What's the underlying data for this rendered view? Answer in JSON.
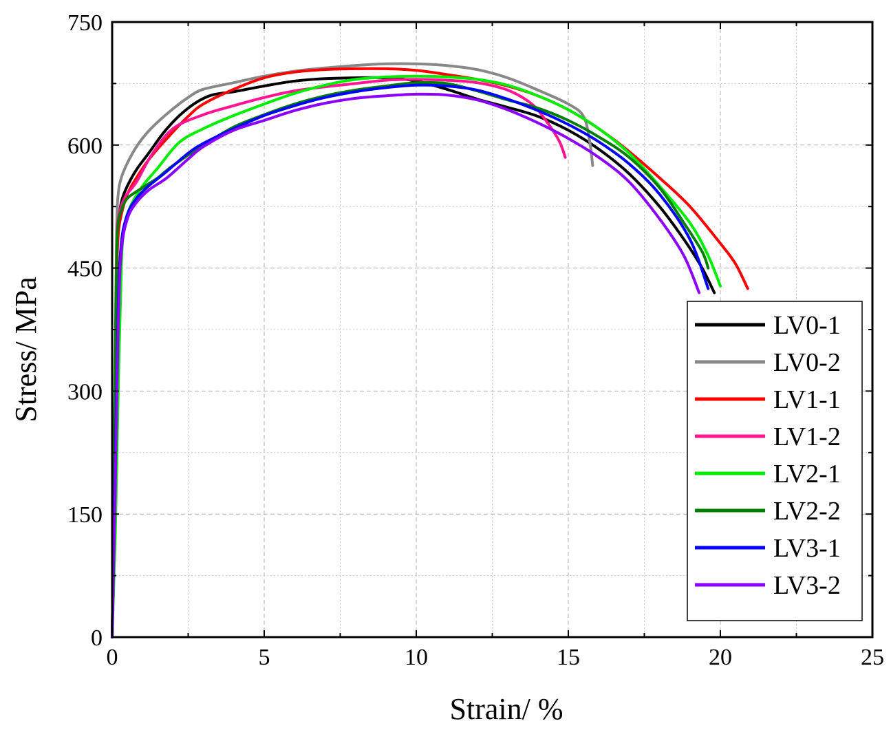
{
  "chart_data": {
    "type": "line",
    "title": "",
    "xlabel": "Strain/ %",
    "ylabel": "Stress/ MPa",
    "xlim": [
      0,
      25
    ],
    "ylim": [
      0,
      750
    ],
    "xticks": [
      0,
      5,
      10,
      15,
      20,
      25
    ],
    "yticks": [
      0,
      150,
      300,
      450,
      600,
      750
    ],
    "grid": true,
    "legend_position": "bottom-right",
    "series": [
      {
        "name": "LV0-1",
        "color": "#000000",
        "x": [
          0,
          0.05,
          0.1,
          0.15,
          0.2,
          0.3,
          0.5,
          0.8,
          1.2,
          1.8,
          2.5,
          3.2,
          4,
          5,
          6,
          7,
          8,
          9,
          10,
          11,
          12,
          13,
          14,
          15,
          16,
          17,
          18,
          18.8,
          19.4,
          19.8
        ],
        "y": [
          0,
          120,
          300,
          450,
          500,
          530,
          550,
          570,
          590,
          620,
          645,
          660,
          665,
          672,
          678,
          681,
          682,
          682,
          678,
          668,
          656,
          646,
          635,
          618,
          595,
          565,
          525,
          485,
          450,
          420
        ]
      },
      {
        "name": "LV0-2",
        "color": "#888888",
        "x": [
          0,
          0.05,
          0.1,
          0.15,
          0.2,
          0.3,
          0.5,
          0.8,
          1.2,
          1.8,
          2.5,
          3,
          4,
          5,
          6,
          7,
          8,
          9,
          10,
          11,
          12,
          13,
          14,
          15,
          15.5,
          15.7,
          15.8
        ],
        "y": [
          0,
          150,
          350,
          500,
          540,
          560,
          578,
          598,
          617,
          638,
          658,
          668,
          676,
          684,
          690,
          694,
          697,
          699,
          699,
          697,
          692,
          682,
          667,
          650,
          635,
          605,
          575
        ]
      },
      {
        "name": "LV1-1",
        "color": "#ff0000",
        "x": [
          0,
          0.05,
          0.1,
          0.15,
          0.2,
          0.3,
          0.5,
          0.8,
          1.2,
          1.8,
          2.5,
          3,
          4,
          5,
          6,
          7,
          8,
          9,
          10,
          11,
          12,
          13,
          14,
          15,
          16,
          17,
          18,
          19,
          20,
          20.5,
          20.9
        ],
        "y": [
          0,
          120,
          300,
          440,
          490,
          515,
          540,
          560,
          582,
          608,
          635,
          650,
          668,
          682,
          689,
          692,
          693,
          693,
          691,
          686,
          680,
          672,
          660,
          643,
          620,
          592,
          560,
          525,
          480,
          455,
          425
        ]
      },
      {
        "name": "LV1-2",
        "color": "#ff1493",
        "x": [
          0,
          0.05,
          0.1,
          0.15,
          0.2,
          0.4,
          0.8,
          1.3,
          2,
          3,
          4,
          5,
          6,
          7,
          8,
          9,
          10,
          11,
          12,
          13,
          13.8,
          14.3,
          14.7,
          14.9
        ],
        "y": [
          0,
          130,
          320,
          470,
          510,
          535,
          555,
          588,
          620,
          637,
          648,
          658,
          666,
          671,
          675,
          679,
          680,
          679,
          676,
          667,
          650,
          628,
          605,
          585
        ]
      },
      {
        "name": "LV2-1",
        "color": "#00ee00",
        "x": [
          0,
          0.1,
          0.2,
          0.3,
          0.4,
          0.6,
          1,
          1.5,
          2.2,
          3,
          4,
          5,
          6,
          7,
          8,
          9,
          10,
          11,
          12,
          13,
          14,
          15,
          16,
          17,
          18,
          19,
          19.6,
          20
        ],
        "y": [
          0,
          120,
          300,
          450,
          500,
          525,
          550,
          572,
          603,
          620,
          636,
          650,
          663,
          673,
          680,
          683,
          684,
          683,
          680,
          673,
          660,
          643,
          620,
          590,
          550,
          505,
          465,
          428
        ]
      },
      {
        "name": "LV2-2",
        "color": "#007f00",
        "x": [
          0,
          0.05,
          0.1,
          0.15,
          0.2,
          0.3,
          0.5,
          1,
          1.5,
          2,
          3,
          4,
          5,
          6,
          7,
          8,
          9,
          10,
          11,
          12,
          13,
          14,
          15,
          16,
          17,
          18,
          18.8,
          19.4,
          19.6
        ],
        "y": [
          0,
          140,
          330,
          470,
          505,
          520,
          535,
          548,
          560,
          575,
          600,
          622,
          637,
          650,
          660,
          667,
          672,
          676,
          675,
          666,
          655,
          645,
          630,
          610,
          585,
          548,
          505,
          470,
          450
        ]
      },
      {
        "name": "LV3-1",
        "color": "#0000ff",
        "x": [
          0,
          0.1,
          0.2,
          0.3,
          0.5,
          0.8,
          1.2,
          1.8,
          2.5,
          3,
          4,
          5,
          6,
          7,
          8,
          9,
          10,
          11,
          12,
          13,
          14,
          15,
          16,
          17,
          18,
          19,
          19.6
        ],
        "y": [
          0,
          200,
          400,
          480,
          515,
          535,
          550,
          568,
          590,
          602,
          620,
          636,
          648,
          658,
          665,
          670,
          673,
          672,
          667,
          656,
          642,
          625,
          604,
          577,
          540,
          485,
          425
        ]
      },
      {
        "name": "LV3-2",
        "color": "#8b00ff",
        "x": [
          0,
          0.1,
          0.2,
          0.3,
          0.5,
          0.8,
          1.2,
          1.8,
          2.5,
          3,
          4,
          5,
          6,
          7,
          8,
          9,
          10,
          11,
          12,
          13,
          14,
          15,
          16,
          17,
          18,
          18.8,
          19.3
        ],
        "y": [
          0,
          180,
          380,
          470,
          510,
          530,
          545,
          560,
          583,
          598,
          618,
          630,
          642,
          651,
          657,
          660,
          662,
          661,
          655,
          643,
          627,
          608,
          585,
          555,
          510,
          465,
          420
        ]
      }
    ]
  }
}
